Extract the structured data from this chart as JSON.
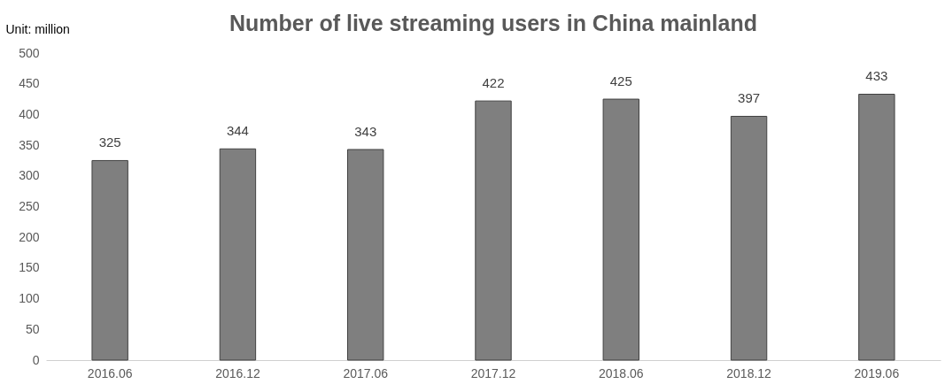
{
  "chart_data": {
    "type": "bar",
    "title": "Number of live streaming users in China mainland",
    "ylabel": "Unit: million",
    "categories": [
      "2016.06",
      "2016.12",
      "2017.06",
      "2017.12",
      "2018.06",
      "2018.12",
      "2019.06"
    ],
    "values": [
      325,
      344,
      343,
      422,
      425,
      397,
      433
    ],
    "color": "#7f7f7f",
    "ylim": [
      0,
      500
    ],
    "yticks": [
      0,
      50,
      100,
      150,
      200,
      250,
      300,
      350,
      400,
      450,
      500
    ],
    "grid": false,
    "data_labels": true
  }
}
